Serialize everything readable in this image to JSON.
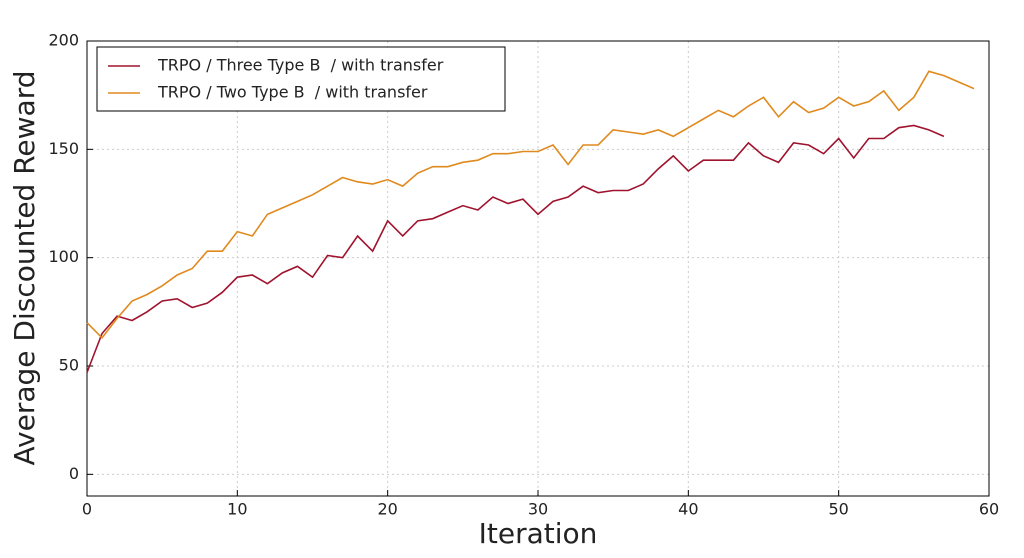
{
  "chart_data": {
    "type": "line",
    "x_label": "Iteration",
    "y_label": "Average Discounted Reward",
    "xlim": [
      0,
      60
    ],
    "xticks": [
      0,
      10,
      20,
      30,
      40,
      50,
      60
    ],
    "ylim": [
      -10,
      200
    ],
    "yticks": [
      0,
      50,
      100,
      150,
      200
    ],
    "grid": true,
    "legend": "upper left",
    "series": [
      {
        "name": "TRPO / Three Type B  / with transfer",
        "color": "#a0132e",
        "x": [
          0,
          1,
          2,
          3,
          4,
          5,
          6,
          7,
          8,
          9,
          10,
          11,
          12,
          13,
          14,
          15,
          16,
          17,
          18,
          19,
          20,
          21,
          22,
          23,
          24,
          25,
          26,
          27,
          28,
          29,
          30,
          31,
          32,
          33,
          34,
          35,
          36,
          37,
          38,
          39,
          40,
          41,
          42,
          43,
          44,
          45,
          46,
          47,
          48,
          49,
          50,
          51,
          52,
          53,
          54,
          55,
          56,
          57
        ],
        "values": [
          47,
          65,
          73,
          71,
          75,
          80,
          81,
          77,
          79,
          84,
          91,
          92,
          88,
          93,
          96,
          91,
          101,
          100,
          110,
          103,
          117,
          110,
          117,
          118,
          121,
          124,
          122,
          128,
          125,
          127,
          120,
          126,
          128,
          133,
          130,
          131,
          131,
          134,
          141,
          147,
          140,
          145,
          145,
          145,
          153,
          147,
          144,
          153,
          152,
          148,
          155,
          146,
          155,
          155,
          160,
          161,
          159,
          156
        ]
      },
      {
        "name": "TRPO / Two Type B  / with transfer",
        "color": "#e08a1e",
        "x": [
          0,
          1,
          2,
          3,
          4,
          5,
          6,
          7,
          8,
          9,
          10,
          11,
          12,
          13,
          14,
          15,
          16,
          17,
          18,
          19,
          20,
          21,
          22,
          23,
          24,
          25,
          26,
          27,
          28,
          29,
          30,
          31,
          32,
          33,
          34,
          35,
          36,
          37,
          38,
          39,
          40,
          41,
          42,
          43,
          44,
          45,
          46,
          47,
          48,
          49,
          50,
          51,
          52,
          53,
          54,
          55,
          56,
          57,
          58,
          59
        ],
        "values": [
          70,
          63,
          72,
          80,
          83,
          87,
          92,
          95,
          103,
          103,
          112,
          110,
          120,
          123,
          126,
          129,
          133,
          137,
          135,
          134,
          136,
          133,
          139,
          142,
          142,
          144,
          145,
          148,
          148,
          149,
          149,
          152,
          143,
          152,
          152,
          159,
          158,
          157,
          159,
          156,
          160,
          164,
          168,
          165,
          170,
          174,
          165,
          172,
          167,
          169,
          174,
          170,
          172,
          177,
          168,
          174,
          186,
          184,
          181,
          178
        ]
      }
    ]
  }
}
